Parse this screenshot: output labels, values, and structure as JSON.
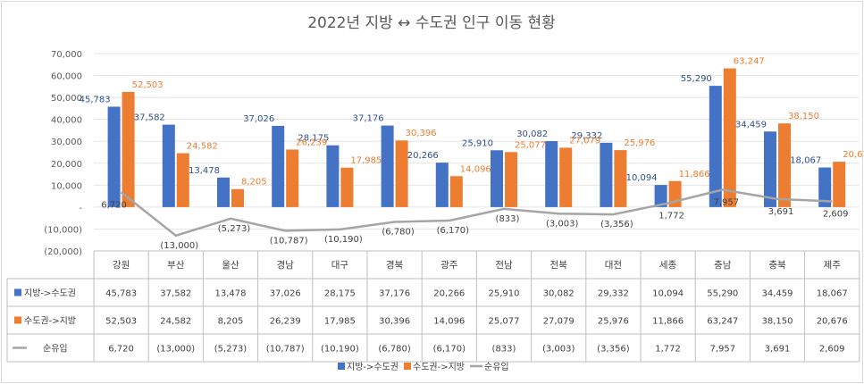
{
  "chart_data": {
    "type": "bar",
    "title": "2022년 지방 ↔ 수도권 인구 이동 현황",
    "ylim": [
      -20000,
      70000
    ],
    "yticks": [
      "70,000",
      "60,000",
      "50,000",
      "40,000",
      "30,000",
      "20,000",
      "10,000",
      "-",
      "(10,000)",
      "(20,000)"
    ],
    "categories": [
      "강원",
      "부산",
      "울산",
      "경남",
      "대구",
      "경북",
      "광주",
      "전남",
      "전북",
      "대전",
      "세종",
      "충남",
      "충북",
      "제주"
    ],
    "series": [
      {
        "name": "지방->수도권",
        "type": "bar",
        "color": "#4472c4",
        "label_color": "#2f4f8f",
        "values": [
          45783,
          37582,
          13478,
          37026,
          28175,
          37176,
          20266,
          25910,
          30082,
          29332,
          10094,
          55290,
          34459,
          18067
        ],
        "labels": [
          "45,783",
          "37,582",
          "13,478",
          "37,026",
          "28,175",
          "37,176",
          "20,266",
          "25,910",
          "30,082",
          "29,332",
          "10,094",
          "55,290",
          "34,459",
          "18,067"
        ]
      },
      {
        "name": "수도권->지방",
        "type": "bar",
        "color": "#ed7d31",
        "label_color": "#ed7d31",
        "values": [
          52503,
          24582,
          8205,
          26239,
          17985,
          30396,
          14096,
          25077,
          27079,
          25976,
          11866,
          63247,
          38150,
          20676
        ],
        "labels": [
          "52,503",
          "24,582",
          "8,205",
          "26,239",
          "17,985",
          "30,396",
          "14,096",
          "25,077",
          "27,079",
          "25,976",
          "11,866",
          "63,247",
          "38,150",
          "20,676"
        ]
      },
      {
        "name": "순유입",
        "type": "line",
        "color": "#a5a5a5",
        "label_color": "#404040",
        "values": [
          6720,
          -13000,
          -5273,
          -10787,
          -10190,
          -6780,
          -6170,
          -833,
          -3003,
          -3356,
          1772,
          7957,
          3691,
          2609
        ],
        "labels": [
          "6,720",
          "(13,000)",
          "(5,273)",
          "(10,787)",
          "(10,190)",
          "(6,780)",
          "(6,170)",
          "(833)",
          "(3,003)",
          "(3,356)",
          "1,772",
          "7,957",
          "3,691",
          "2,609"
        ]
      }
    ],
    "legend": "bottom",
    "grid": true,
    "data_table": true
  }
}
